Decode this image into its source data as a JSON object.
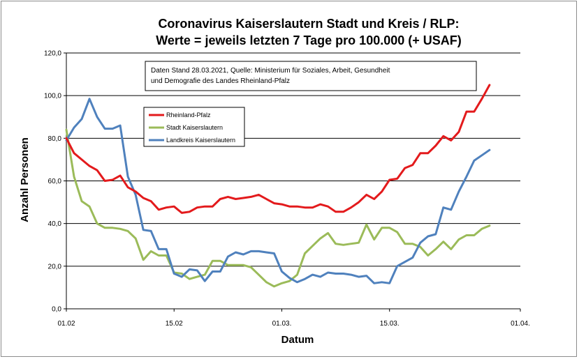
{
  "chart_data": {
    "type": "line",
    "title": [
      "Coronavirus Kaiserslautern Stadt und Kreis / RLP:",
      "Werte = jeweils letzten 7 Tage pro 100.000 (+ USAF)"
    ],
    "xlabel": "Datum",
    "ylabel": "Anzahl Personen",
    "ylim": [
      0,
      120
    ],
    "y_ticks": [
      "0,0",
      "20,0",
      "40,0",
      "60,0",
      "80,0",
      "100,0",
      "120,0"
    ],
    "y_tick_values": [
      0,
      20,
      40,
      60,
      80,
      100,
      120
    ],
    "x_tick_labels": [
      "01.02",
      "15.02",
      "01.03.",
      "15.03.",
      "01.04."
    ],
    "x_tick_days": [
      0,
      14,
      28,
      42,
      59
    ],
    "x_range_days": [
      0,
      59
    ],
    "grid": "horizontal",
    "legend_position": "upper-left",
    "annotation": [
      "Daten Stand 28.03.2021, Quelle: Ministerium für Soziales, Arbeit, Gesundheit",
      "und Demografie des Landes Rheinland-Pfalz"
    ],
    "series": [
      {
        "name": "Rheinland-Pfalz",
        "color": "#e31a1c",
        "values": [
          80,
          73,
          70,
          67,
          65,
          60,
          60.5,
          62.5,
          57,
          55,
          52,
          50.5,
          46.5,
          47.5,
          48,
          45,
          45.5,
          47.5,
          48,
          48,
          51.5,
          52.5,
          51.5,
          52,
          52.5,
          53.5,
          51.5,
          49.5,
          49,
          48,
          48,
          47.5,
          47.5,
          49,
          48,
          45.5,
          45.5,
          47.5,
          50,
          53.5,
          51.5,
          55,
          60.5,
          61,
          66,
          67.5,
          73,
          73,
          76.5,
          81,
          79,
          83,
          92.5,
          92.5,
          98.5,
          105
        ]
      },
      {
        "name": "Stadt Kaiserslautern",
        "color": "#9bbb59",
        "values": [
          84,
          62,
          50.5,
          48,
          40,
          38,
          38,
          37.5,
          36.5,
          33,
          23,
          27,
          25,
          25,
          17,
          16.5,
          14,
          15,
          16,
          22.5,
          22.5,
          20.5,
          20.5,
          20.5,
          19.5,
          16,
          12.5,
          10.5,
          12,
          13,
          16,
          26,
          29.5,
          33,
          35.5,
          30.5,
          30,
          30.5,
          31,
          39.5,
          32.5,
          38,
          38,
          36,
          30.5,
          30.5,
          29,
          25,
          28,
          31.5,
          28,
          32.5,
          34.5,
          34.5,
          37.5,
          39
        ]
      },
      {
        "name": "Landkreis Kaiserslautern",
        "color": "#4f81bd",
        "values": [
          79,
          85,
          89,
          98.5,
          90,
          84.5,
          84.5,
          86,
          62,
          53.5,
          37,
          36.5,
          28,
          28,
          16.5,
          15,
          18.5,
          18,
          13,
          17.5,
          17.5,
          24.5,
          26.5,
          25.5,
          27,
          27,
          26.5,
          26,
          17.5,
          14.5,
          12.5,
          14,
          16,
          15,
          17,
          16.5,
          16.5,
          16,
          15,
          15.5,
          12,
          12.5,
          12,
          20,
          22,
          24,
          31,
          34,
          35,
          47.5,
          46.5,
          55,
          62,
          69.5,
          72,
          74.5
        ]
      }
    ]
  }
}
